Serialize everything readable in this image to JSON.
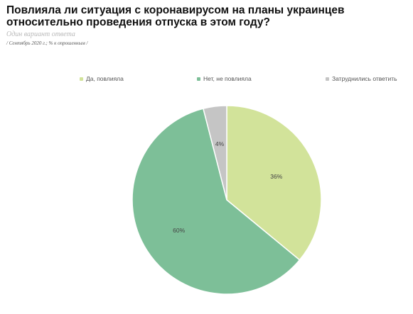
{
  "header": {
    "title": "Повлияла ли ситуация с коронавирусом на планы украинцев относительно проведения отпуска в этом году?",
    "subtitle": "Один вариант ответа",
    "note": "/ Сентябрь 2020 г.; % к опрошенным /"
  },
  "chart_data": {
    "type": "pie",
    "title": "Повлияла ли ситуация с коронавирусом на планы украинцев относительно проведения отпуска в этом году?",
    "categories": [
      "Да, повлияла",
      "Нет, не повлияла",
      "Затруднились ответить"
    ],
    "values": [
      36,
      60,
      4
    ],
    "data_labels": [
      "36%",
      "60%",
      "4%"
    ],
    "colors": [
      "#d2e39a",
      "#7dbf98",
      "#c5c5c5"
    ],
    "legend_position": "top",
    "start_angle": "12 o'clock, clockwise"
  }
}
